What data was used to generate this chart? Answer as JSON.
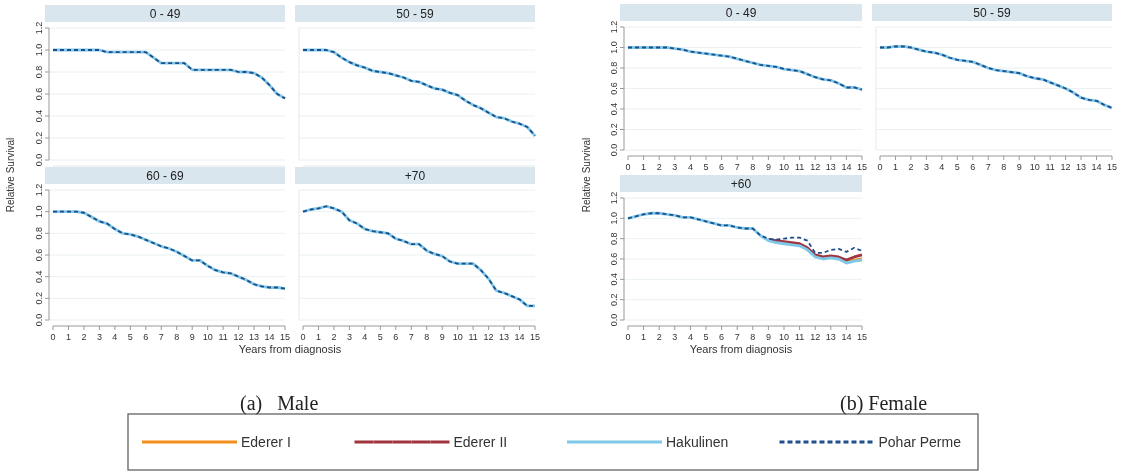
{
  "chart_data": [
    {
      "type": "line",
      "title": "0 - 49",
      "ylabel": "Relative Survival",
      "x": [
        0,
        0.5,
        1,
        1.5,
        2,
        2.5,
        3,
        3.5,
        4,
        4.5,
        5,
        5.5,
        6,
        6.5,
        7,
        7.5,
        8,
        8.5,
        9,
        9.5,
        10,
        10.5,
        11,
        11.5,
        12,
        12.5,
        13,
        13.5,
        14,
        14.5,
        15
      ],
      "xlim": [
        0,
        15
      ],
      "xticks": [
        0,
        1,
        2,
        3,
        4,
        5,
        6,
        7,
        8,
        9,
        10,
        11,
        12,
        13,
        14,
        15
      ],
      "ylim": [
        0,
        1.2
      ],
      "yticks": [
        {
          "value": 0,
          "label": "0.0"
        },
        {
          "value": 0.2,
          "label": "0.2"
        },
        {
          "value": 0.4,
          "label": "0.4"
        },
        {
          "value": 0.6,
          "label": "0.6"
        },
        {
          "value": 0.8,
          "label": "0.8"
        },
        {
          "value": 1,
          "label": "1.0"
        },
        {
          "value": 1.2,
          "label": "1.2"
        }
      ],
      "grid": "y",
      "tick_labels": "y",
      "series": [
        {
          "color": "#7ec8e8",
          "values": [
            1.0,
            1.0,
            1.0,
            1.0,
            1.0,
            1.0,
            1.0,
            0.98,
            0.98,
            0.98,
            0.98,
            0.98,
            0.98,
            0.93,
            0.88,
            0.88,
            0.88,
            0.88,
            0.82,
            0.82,
            0.82,
            0.82,
            0.82,
            0.82,
            0.8,
            0.8,
            0.79,
            0.75,
            0.68,
            0.6,
            0.56
          ]
        },
        {
          "color": "#1f4e8c",
          "line_style": "dashed",
          "values": [
            1.0,
            1.0,
            1.0,
            1.0,
            1.0,
            1.0,
            1.0,
            0.98,
            0.98,
            0.98,
            0.98,
            0.98,
            0.98,
            0.93,
            0.88,
            0.88,
            0.88,
            0.88,
            0.82,
            0.82,
            0.82,
            0.82,
            0.82,
            0.82,
            0.8,
            0.8,
            0.79,
            0.75,
            0.68,
            0.6,
            0.56
          ]
        }
      ]
    },
    {
      "type": "line",
      "title": "50 - 59",
      "x": [
        0,
        0.5,
        1,
        1.5,
        2,
        2.5,
        3,
        3.5,
        4,
        4.5,
        5,
        5.5,
        6,
        6.5,
        7,
        7.5,
        8,
        8.5,
        9,
        9.5,
        10,
        10.5,
        11,
        11.5,
        12,
        12.5,
        13,
        13.5,
        14,
        14.5,
        15
      ],
      "xlim": [
        0,
        15
      ],
      "xticks": [
        0,
        1,
        2,
        3,
        4,
        5,
        6,
        7,
        8,
        9,
        10,
        11,
        12,
        13,
        14,
        15
      ],
      "ylim": [
        0,
        1.2
      ],
      "yticks": [
        0,
        0.2,
        0.4,
        0.6,
        0.8,
        1,
        1.2
      ],
      "grid": "y",
      "tick_labels": false,
      "series": [
        {
          "color": "#7ec8e8",
          "values": [
            1.0,
            1.0,
            1.0,
            1.0,
            0.98,
            0.93,
            0.89,
            0.86,
            0.84,
            0.81,
            0.8,
            0.79,
            0.77,
            0.75,
            0.72,
            0.71,
            0.68,
            0.65,
            0.64,
            0.61,
            0.59,
            0.54,
            0.5,
            0.47,
            0.43,
            0.39,
            0.38,
            0.35,
            0.33,
            0.3,
            0.22
          ]
        },
        {
          "color": "#1f4e8c",
          "line_style": "dashed",
          "values": [
            1.0,
            1.0,
            1.0,
            1.0,
            0.98,
            0.93,
            0.89,
            0.86,
            0.84,
            0.81,
            0.8,
            0.79,
            0.77,
            0.75,
            0.72,
            0.71,
            0.68,
            0.65,
            0.64,
            0.61,
            0.59,
            0.54,
            0.5,
            0.47,
            0.43,
            0.39,
            0.38,
            0.35,
            0.33,
            0.3,
            0.22
          ]
        }
      ]
    },
    {
      "type": "line",
      "title": "60 - 69",
      "x": [
        0,
        0.5,
        1,
        1.5,
        2,
        2.5,
        3,
        3.5,
        4,
        4.5,
        5,
        5.5,
        6,
        6.5,
        7,
        7.5,
        8,
        8.5,
        9,
        9.5,
        10,
        10.5,
        11,
        11.5,
        12,
        12.5,
        13,
        13.5,
        14,
        14.5,
        15
      ],
      "xlim": [
        0,
        15
      ],
      "xticks": [
        0,
        1,
        2,
        3,
        4,
        5,
        6,
        7,
        8,
        9,
        10,
        11,
        12,
        13,
        14,
        15
      ],
      "ylim": [
        0,
        1.2
      ],
      "yticks": [
        {
          "value": 0,
          "label": "0.0"
        },
        {
          "value": 0.2,
          "label": "0.2"
        },
        {
          "value": 0.4,
          "label": "0.4"
        },
        {
          "value": 0.6,
          "label": "0.6"
        },
        {
          "value": 0.8,
          "label": "0.8"
        },
        {
          "value": 1,
          "label": "1.0"
        },
        {
          "value": 1.2,
          "label": "1.2"
        }
      ],
      "grid": "y",
      "series": [
        {
          "color": "#7ec8e8",
          "values": [
            1.0,
            1.0,
            1.0,
            1.0,
            0.99,
            0.95,
            0.91,
            0.89,
            0.84,
            0.8,
            0.79,
            0.77,
            0.74,
            0.71,
            0.68,
            0.66,
            0.63,
            0.59,
            0.55,
            0.55,
            0.5,
            0.46,
            0.44,
            0.43,
            0.4,
            0.37,
            0.33,
            0.31,
            0.3,
            0.3,
            0.29
          ]
        },
        {
          "color": "#1f4e8c",
          "line_style": "dashed",
          "values": [
            1.0,
            1.0,
            1.0,
            1.0,
            0.99,
            0.95,
            0.91,
            0.89,
            0.84,
            0.8,
            0.79,
            0.77,
            0.74,
            0.71,
            0.68,
            0.66,
            0.63,
            0.59,
            0.55,
            0.55,
            0.5,
            0.46,
            0.44,
            0.43,
            0.4,
            0.37,
            0.33,
            0.31,
            0.3,
            0.3,
            0.29
          ]
        }
      ]
    },
    {
      "type": "line",
      "title": "+70",
      "xlabel": "Years from diagnosis",
      "annotations": [
        "(a)   Male"
      ],
      "x": [
        0,
        0.5,
        1,
        1.5,
        2,
        2.5,
        3,
        3.5,
        4,
        4.5,
        5,
        5.5,
        6,
        6.5,
        7,
        7.5,
        8,
        8.5,
        9,
        9.5,
        10,
        10.5,
        11,
        11.5,
        12,
        12.5,
        13,
        13.5,
        14,
        14.5,
        15
      ],
      "xlim": [
        0,
        15
      ],
      "xticks": [
        0,
        1,
        2,
        3,
        4,
        5,
        6,
        7,
        8,
        9,
        10,
        11,
        12,
        13,
        14,
        15
      ],
      "ylim": [
        0,
        1.2
      ],
      "yticks": [
        0,
        0.2,
        0.4,
        0.6,
        0.8,
        1,
        1.2
      ],
      "grid": "y",
      "tick_labels": "x",
      "series": [
        {
          "color": "#7ec8e8",
          "values": [
            1.0,
            1.02,
            1.03,
            1.05,
            1.03,
            1.0,
            0.92,
            0.89,
            0.84,
            0.82,
            0.81,
            0.8,
            0.75,
            0.73,
            0.7,
            0.7,
            0.64,
            0.61,
            0.59,
            0.54,
            0.52,
            0.52,
            0.52,
            0.46,
            0.38,
            0.27,
            0.25,
            0.22,
            0.19,
            0.13,
            0.13
          ]
        },
        {
          "color": "#1f4e8c",
          "line_style": "dashed",
          "values": [
            1.0,
            1.02,
            1.03,
            1.05,
            1.03,
            1.0,
            0.92,
            0.89,
            0.84,
            0.82,
            0.81,
            0.8,
            0.75,
            0.73,
            0.7,
            0.7,
            0.64,
            0.61,
            0.59,
            0.54,
            0.52,
            0.52,
            0.52,
            0.46,
            0.38,
            0.27,
            0.25,
            0.22,
            0.19,
            0.13,
            0.13
          ]
        }
      ]
    },
    {
      "type": "line",
      "title": "0 - 49",
      "ylabel": "Relative Survival",
      "x": [
        0,
        0.5,
        1,
        1.5,
        2,
        2.5,
        3,
        3.5,
        4,
        4.5,
        5,
        5.5,
        6,
        6.5,
        7,
        7.5,
        8,
        8.5,
        9,
        9.5,
        10,
        10.5,
        11,
        11.5,
        12,
        12.5,
        13,
        13.5,
        14,
        14.5,
        15
      ],
      "xlim": [
        0,
        15
      ],
      "xticks": [
        0,
        1,
        2,
        3,
        4,
        5,
        6,
        7,
        8,
        9,
        10,
        11,
        12,
        13,
        14,
        15
      ],
      "ylim": [
        0,
        1.2
      ],
      "yticks": [
        {
          "value": 0,
          "label": "0.0"
        },
        {
          "value": 0.2,
          "label": "0.2"
        },
        {
          "value": 0.4,
          "label": "0.4"
        },
        {
          "value": 0.6,
          "label": "0.6"
        },
        {
          "value": 0.8,
          "label": "0.8"
        },
        {
          "value": 1,
          "label": "1.0"
        },
        {
          "value": 1.2,
          "label": "1.2"
        }
      ],
      "grid": "y",
      "series": [
        {
          "color": "#7ec8e8",
          "values": [
            1.0,
            1.0,
            1.0,
            1.0,
            1.0,
            1.0,
            0.99,
            0.98,
            0.96,
            0.95,
            0.94,
            0.93,
            0.92,
            0.91,
            0.89,
            0.87,
            0.85,
            0.83,
            0.82,
            0.81,
            0.79,
            0.78,
            0.77,
            0.74,
            0.71,
            0.69,
            0.68,
            0.65,
            0.61,
            0.61,
            0.59
          ]
        },
        {
          "color": "#1f4e8c",
          "line_style": "dashed",
          "values": [
            1.0,
            1.0,
            1.0,
            1.0,
            1.0,
            1.0,
            0.99,
            0.98,
            0.96,
            0.95,
            0.94,
            0.93,
            0.92,
            0.91,
            0.89,
            0.87,
            0.85,
            0.83,
            0.82,
            0.81,
            0.79,
            0.78,
            0.77,
            0.74,
            0.71,
            0.69,
            0.68,
            0.65,
            0.61,
            0.61,
            0.59
          ]
        }
      ]
    },
    {
      "type": "line",
      "title": "50 - 59",
      "x": [
        0,
        0.5,
        1,
        1.5,
        2,
        2.5,
        3,
        3.5,
        4,
        4.5,
        5,
        5.5,
        6,
        6.5,
        7,
        7.5,
        8,
        8.5,
        9,
        9.5,
        10,
        10.5,
        11,
        11.5,
        12,
        12.5,
        13,
        13.5,
        14,
        14.5,
        15
      ],
      "xlim": [
        0,
        15
      ],
      "xticks": [
        0,
        1,
        2,
        3,
        4,
        5,
        6,
        7,
        8,
        9,
        10,
        11,
        12,
        13,
        14,
        15
      ],
      "ylim": [
        0,
        1.2
      ],
      "yticks": [
        0,
        0.2,
        0.4,
        0.6,
        0.8,
        1,
        1.2
      ],
      "grid": "y",
      "tick_labels": "x",
      "series": [
        {
          "color": "#7ec8e8",
          "values": [
            1.0,
            1.0,
            1.01,
            1.01,
            1.0,
            0.98,
            0.96,
            0.95,
            0.93,
            0.9,
            0.88,
            0.87,
            0.86,
            0.83,
            0.8,
            0.78,
            0.77,
            0.76,
            0.75,
            0.72,
            0.7,
            0.69,
            0.66,
            0.63,
            0.6,
            0.56,
            0.51,
            0.49,
            0.48,
            0.44,
            0.41
          ]
        },
        {
          "color": "#1f4e8c",
          "line_style": "dashed",
          "values": [
            1.0,
            1.0,
            1.01,
            1.01,
            1.0,
            0.98,
            0.96,
            0.95,
            0.93,
            0.9,
            0.88,
            0.87,
            0.86,
            0.83,
            0.8,
            0.78,
            0.77,
            0.76,
            0.75,
            0.72,
            0.7,
            0.69,
            0.66,
            0.63,
            0.6,
            0.56,
            0.51,
            0.49,
            0.48,
            0.44,
            0.41
          ]
        }
      ]
    },
    {
      "type": "line",
      "title": "+60",
      "xlabel": "Years from diagnosis",
      "annotations": [
        "(b) Female"
      ],
      "legend": "bottom",
      "x": [
        0,
        0.5,
        1,
        1.5,
        2,
        2.5,
        3,
        3.5,
        4,
        4.5,
        5,
        5.5,
        6,
        6.5,
        7,
        7.5,
        8,
        8.5,
        9,
        9.5,
        10,
        10.5,
        11,
        11.5,
        12,
        12.5,
        13,
        13.5,
        14,
        14.5,
        15
      ],
      "xlim": [
        0,
        15
      ],
      "xticks": [
        0,
        1,
        2,
        3,
        4,
        5,
        6,
        7,
        8,
        9,
        10,
        11,
        12,
        13,
        14,
        15
      ],
      "ylim": [
        0,
        1.2
      ],
      "yticks": [
        {
          "value": 0,
          "label": "0.0"
        },
        {
          "value": 0.2,
          "label": "0.2"
        },
        {
          "value": 0.4,
          "label": "0.4"
        },
        {
          "value": 0.6,
          "label": "0.6"
        },
        {
          "value": 0.8,
          "label": "0.8"
        },
        {
          "value": 1,
          "label": "1.0"
        },
        {
          "value": 1.2,
          "label": "1.2"
        }
      ],
      "grid": "y",
      "series": [
        {
          "name": "Ederer I",
          "color": "#f28e1c",
          "values": [
            null,
            null,
            null,
            null,
            null,
            null,
            null,
            null,
            null,
            null,
            null,
            null,
            null,
            null,
            null,
            null,
            null,
            null,
            null,
            null,
            null,
            null,
            null,
            null,
            null,
            null,
            0.62,
            0.61,
            0.57,
            0.59,
            0.6
          ]
        },
        {
          "name": "Ederer II",
          "color": "#a0353f",
          "values": [
            null,
            null,
            null,
            null,
            null,
            null,
            null,
            null,
            null,
            null,
            null,
            null,
            null,
            null,
            null,
            null,
            null,
            null,
            0.79,
            0.78,
            0.77,
            0.76,
            0.75,
            0.71,
            0.64,
            0.62,
            0.63,
            0.62,
            0.59,
            0.62,
            0.64
          ]
        },
        {
          "name": "Hakulinen",
          "color": "#7ec8e8",
          "values": [
            1.0,
            1.02,
            1.04,
            1.05,
            1.05,
            1.04,
            1.03,
            1.01,
            1.01,
            0.99,
            0.97,
            0.95,
            0.93,
            0.93,
            0.91,
            0.9,
            0.9,
            0.83,
            0.78,
            0.76,
            0.75,
            0.74,
            0.73,
            0.69,
            0.62,
            0.6,
            0.61,
            0.6,
            0.56,
            0.58,
            0.59
          ]
        },
        {
          "name": "Pohar Perme",
          "color": "#1f4e8c",
          "line_style": "dashed",
          "values": [
            1.0,
            1.02,
            1.04,
            1.05,
            1.05,
            1.04,
            1.03,
            1.01,
            1.01,
            0.99,
            0.97,
            0.95,
            0.93,
            0.93,
            0.91,
            0.9,
            0.9,
            0.83,
            0.8,
            0.79,
            0.8,
            0.81,
            0.81,
            0.78,
            0.66,
            0.66,
            0.69,
            0.7,
            0.67,
            0.71,
            0.68
          ]
        }
      ]
    }
  ]
}
